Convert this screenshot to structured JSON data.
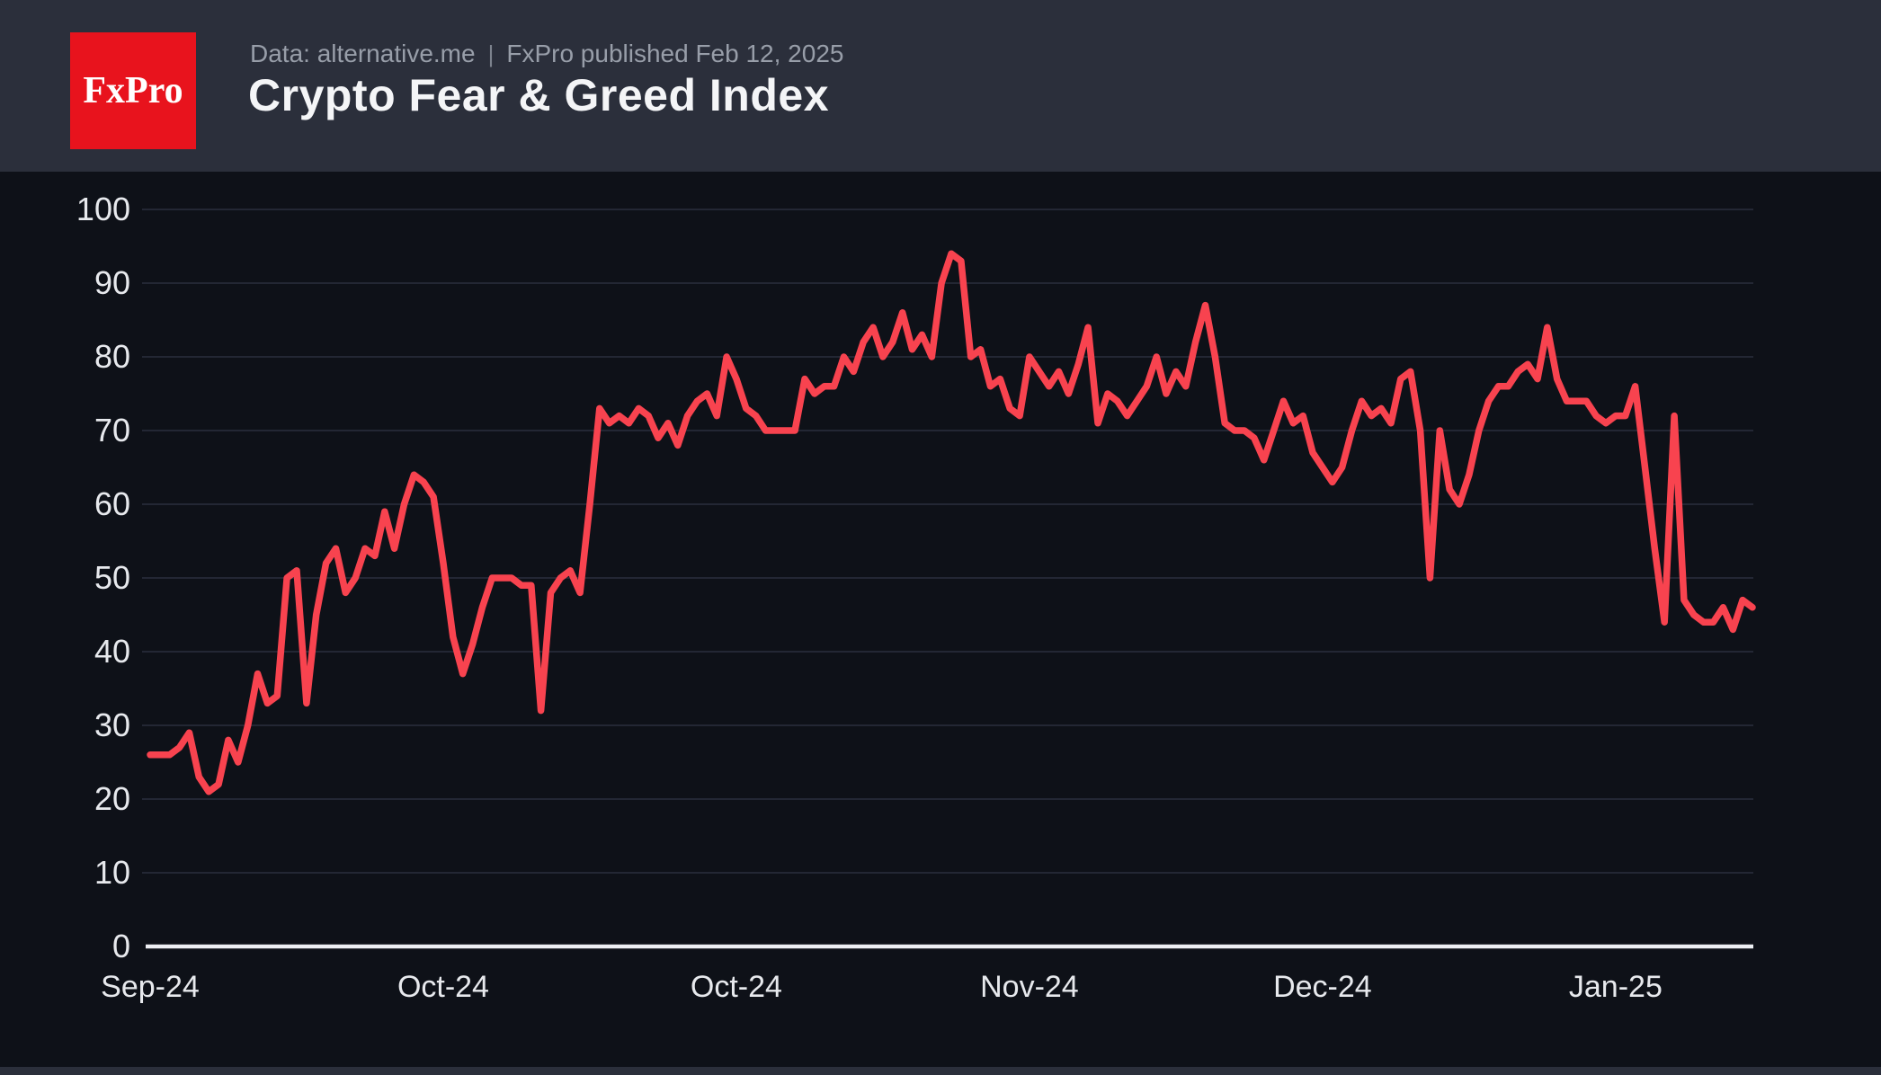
{
  "header": {
    "logo_text": "FxPro",
    "subtitle_source": "Data: alternative.me",
    "subtitle_separator": "|",
    "subtitle_published": "FxPro published Feb 12, 2025",
    "title": "Crypto Fear & Greed Index"
  },
  "colors": {
    "header_bg": "#2b2f3b",
    "chart_bg": "#0e1118",
    "logo_bg": "#e8131d",
    "logo_text": "#ffffff",
    "line": "#f8434f",
    "gridline": "#232734",
    "axis_line": "#edeff3",
    "tick_label": "#e7e9ed",
    "subtitle_text": "#989ea9",
    "title_text": "#f4f5f7"
  },
  "chart_data": {
    "type": "line",
    "title": "Crypto Fear & Greed Index",
    "series_name": "Crypto Fear & Greed Index (alternative.me)",
    "frequency": "daily",
    "start_date": "2024-09-01",
    "end_date": "2025-02-12",
    "ylim": [
      0,
      100
    ],
    "grid": "horizontal-only",
    "legend": "none",
    "y_ticks": [
      0,
      10,
      20,
      30,
      40,
      50,
      60,
      70,
      80,
      90,
      100
    ],
    "x_ticks": [
      {
        "label": "Sep-24",
        "index": 0
      },
      {
        "label": "Oct-24",
        "index": 30
      },
      {
        "label": "Oct-24",
        "index": 60
      },
      {
        "label": "Nov-24",
        "index": 90
      },
      {
        "label": "Dec-24",
        "index": 120
      },
      {
        "label": "Jan-25",
        "index": 150
      }
    ],
    "values": [
      26,
      26,
      26,
      27,
      29,
      23,
      21,
      22,
      28,
      25,
      30,
      37,
      33,
      34,
      50,
      51,
      33,
      45,
      52,
      54,
      48,
      50,
      54,
      53,
      59,
      54,
      60,
      64,
      63,
      61,
      52,
      42,
      37,
      41,
      46,
      50,
      50,
      50,
      49,
      49,
      32,
      48,
      50,
      51,
      48,
      60,
      73,
      71,
      72,
      71,
      73,
      72,
      69,
      71,
      68,
      72,
      74,
      75,
      72,
      80,
      77,
      73,
      72,
      70,
      70,
      70,
      70,
      77,
      75,
      76,
      76,
      80,
      78,
      82,
      84,
      80,
      82,
      86,
      81,
      83,
      80,
      90,
      94,
      93,
      80,
      81,
      76,
      77,
      73,
      72,
      80,
      78,
      76,
      78,
      75,
      79,
      84,
      71,
      75,
      74,
      72,
      74,
      76,
      80,
      75,
      78,
      76,
      82,
      87,
      80,
      71,
      70,
      70,
      69,
      66,
      70,
      74,
      71,
      72,
      67,
      65,
      63,
      65,
      70,
      74,
      72,
      73,
      71,
      77,
      78,
      70,
      50,
      70,
      62,
      60,
      64,
      70,
      74,
      76,
      76,
      78,
      79,
      77,
      84,
      77,
      74,
      74,
      74,
      72,
      71,
      72,
      72,
      76,
      65,
      54,
      44,
      72,
      47,
      45,
      44,
      44,
      46,
      43,
      47,
      46
    ]
  }
}
